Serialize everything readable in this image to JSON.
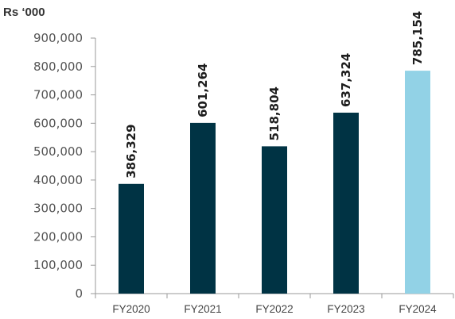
{
  "chart_data": {
    "type": "bar",
    "unit_label": "Rs ‘000",
    "categories": [
      "FY2020",
      "FY2021",
      "FY2022",
      "FY2023",
      "FY2024"
    ],
    "values": [
      386329,
      601264,
      518804,
      637324,
      785154
    ],
    "data_labels": [
      "386,329",
      "601,264",
      "518,804",
      "637,324",
      "785,154"
    ],
    "y_ticks": [
      "0",
      "100,000",
      "200,000",
      "300,000",
      "400,000",
      "500,000",
      "600,000",
      "700,000",
      "800,000",
      "900,000"
    ],
    "ylim": [
      0,
      900000
    ],
    "colors": [
      "#003344",
      "#003344",
      "#003344",
      "#003344",
      "#92d2e6"
    ],
    "grid": false,
    "legend": "none"
  }
}
